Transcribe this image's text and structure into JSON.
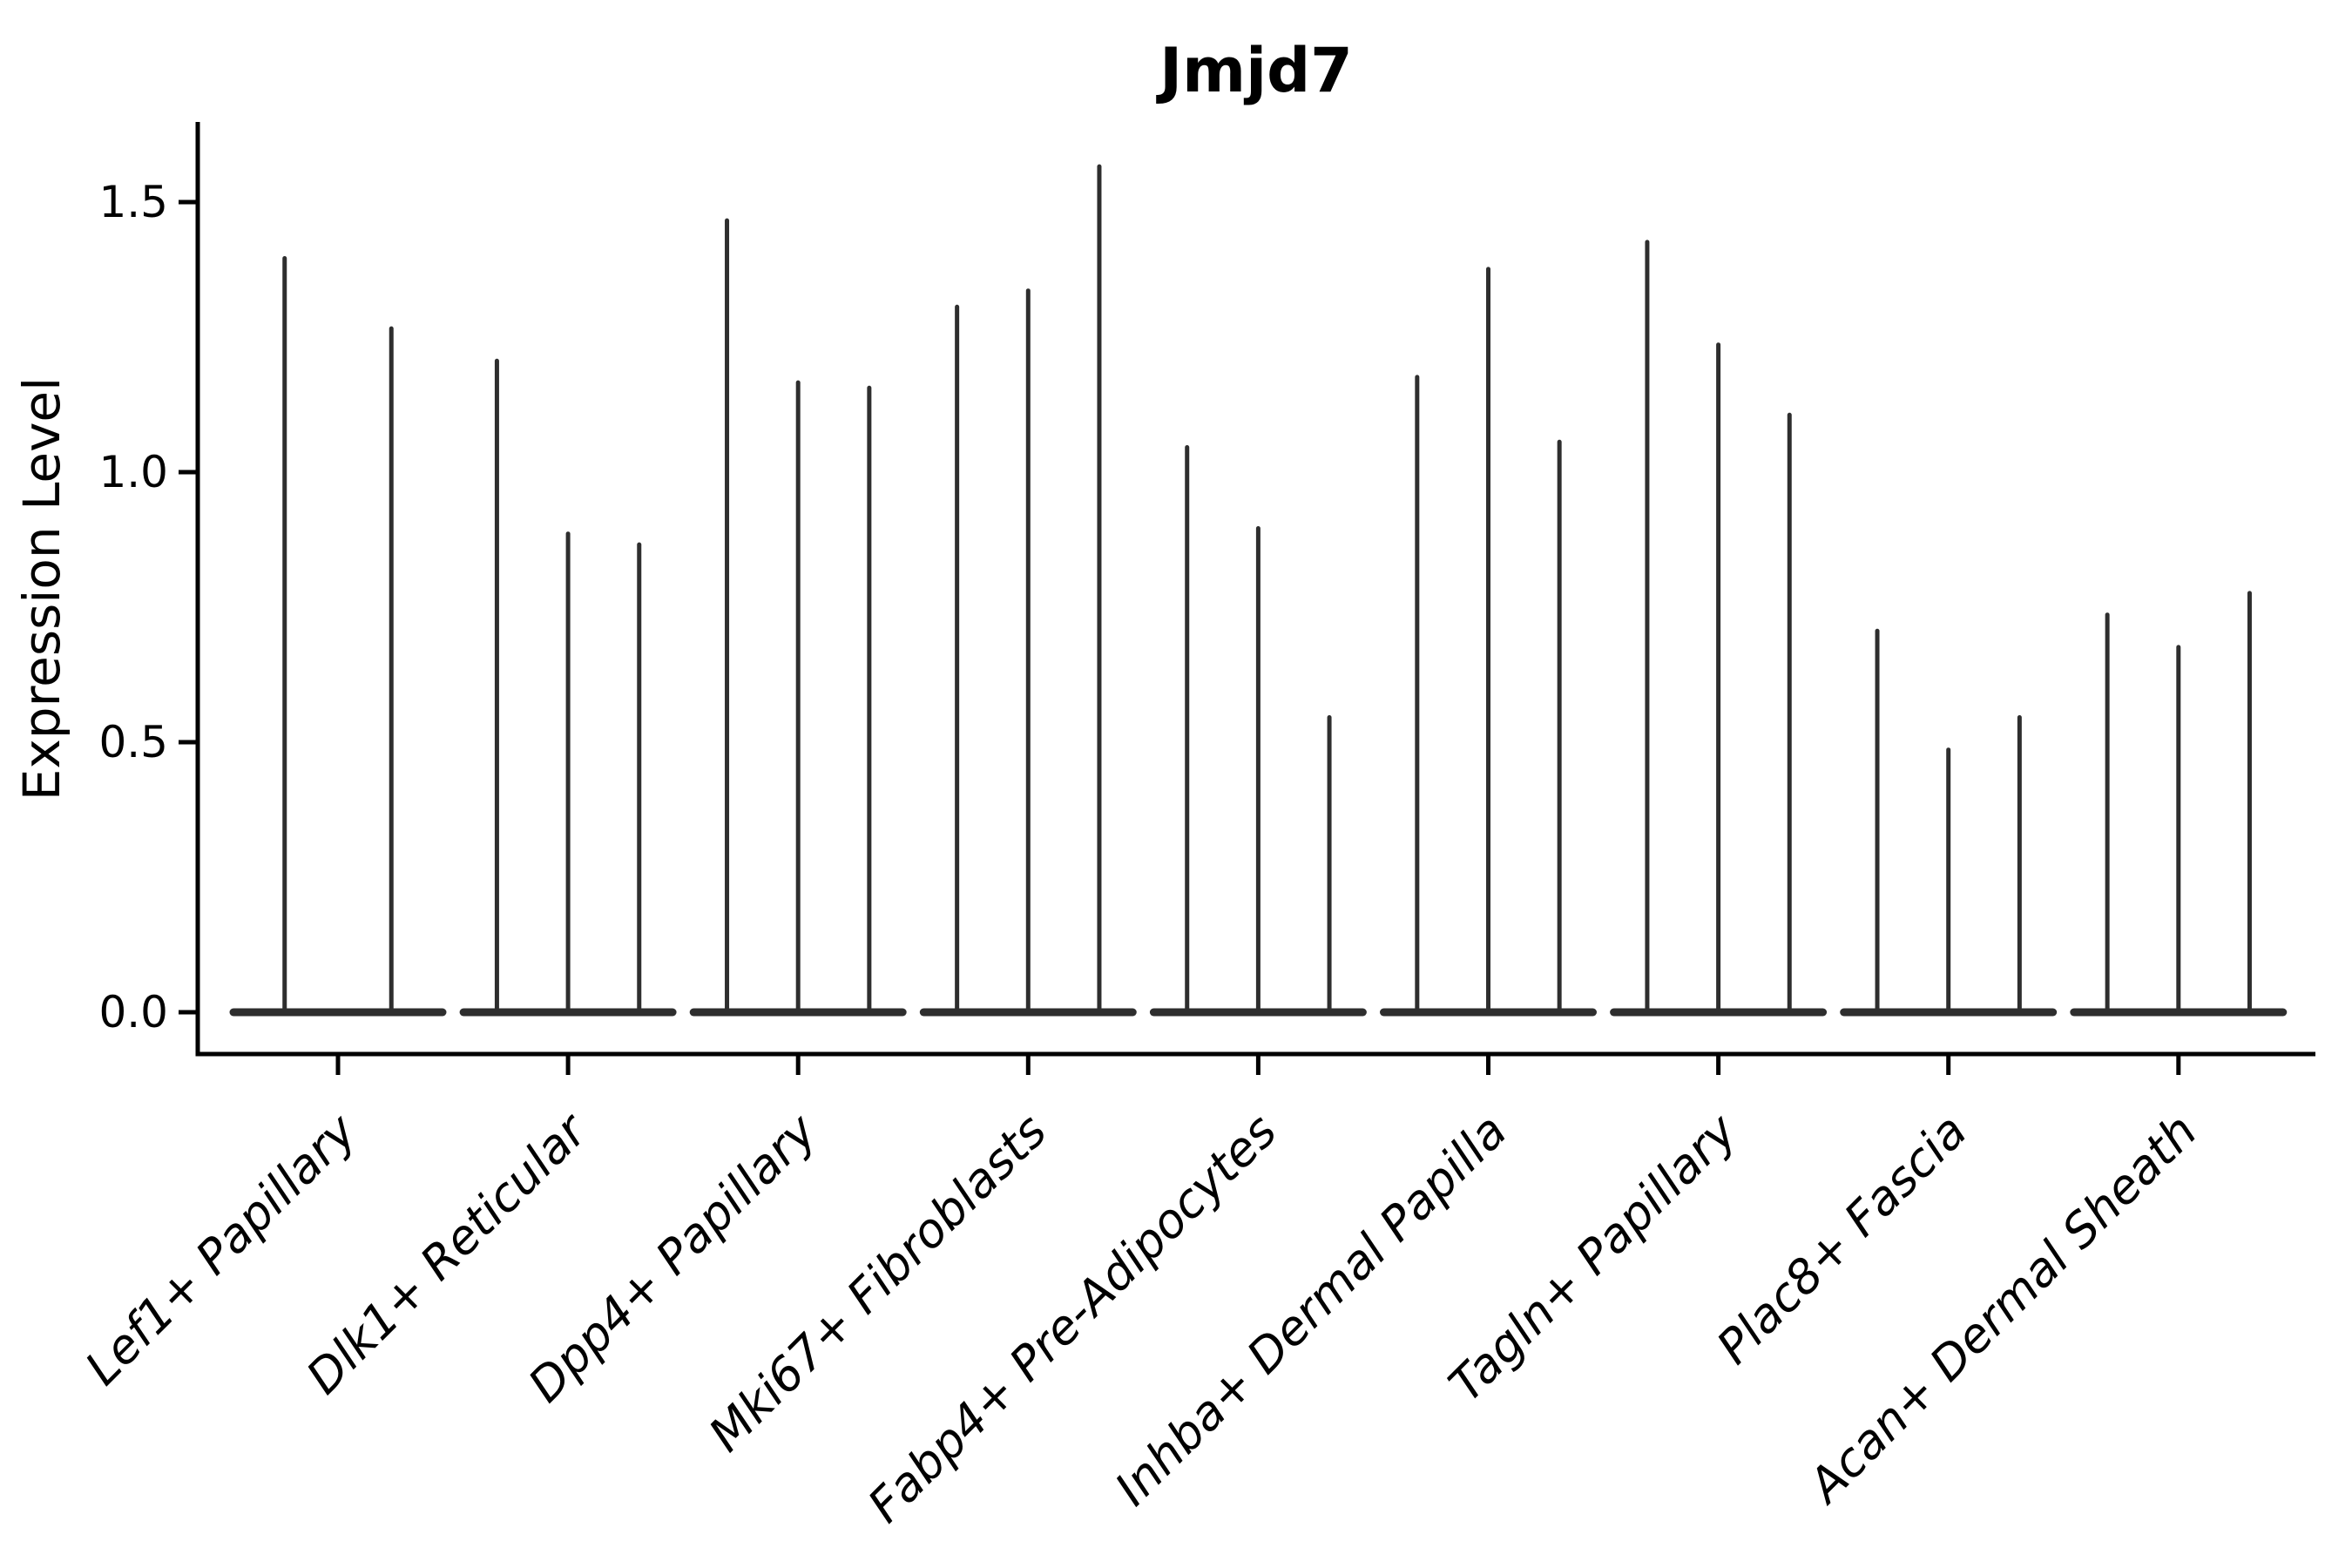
{
  "figure": {
    "title": "Jmjd7",
    "y_axis_label": "Expression Level"
  },
  "chart_data": {
    "type": "violin",
    "title": "Jmjd7",
    "xlabel": "",
    "ylabel": "Expression Level",
    "ylim": [
      -0.08,
      1.65
    ],
    "grid": false,
    "legend": null,
    "yticks": [
      {
        "value": 0.0,
        "label": "0.0"
      },
      {
        "value": 0.5,
        "label": "0.5"
      },
      {
        "value": 1.0,
        "label": "1.0"
      },
      {
        "value": 1.5,
        "label": "1.5"
      }
    ],
    "violin_style": {
      "baseline_value": 0,
      "note": "each violin is a flat dense body at expression 0 with a thin vertical spike rising to its maximum expression value"
    },
    "categories": [
      {
        "label": "Lef1+ Papillary",
        "violin_maxima": [
          1.4,
          1.27
        ]
      },
      {
        "label": "Dlk1+ Reticular",
        "violin_maxima": [
          1.21,
          0.89,
          0.87
        ]
      },
      {
        "label": "Dpp4+ Papillary",
        "violin_maxima": [
          1.47,
          1.17,
          1.16
        ]
      },
      {
        "label": "Mki67+ Fibroblasts",
        "violin_maxima": [
          1.31,
          1.34,
          1.57
        ]
      },
      {
        "label": "Fabp4+ Pre-Adipocytes",
        "violin_maxima": [
          1.05,
          0.9,
          0.55
        ]
      },
      {
        "label": "Inhba+ Dermal Papilla",
        "violin_maxima": [
          1.18,
          1.38,
          1.06
        ]
      },
      {
        "label": "Tagln+ Papillary",
        "violin_maxima": [
          1.43,
          1.24,
          1.11
        ]
      },
      {
        "label": "Plac8+ Fascia",
        "violin_maxima": [
          0.71,
          0.49,
          0.55
        ]
      },
      {
        "label": "Acan+ Dermal Sheath",
        "violin_maxima": [
          0.74,
          0.68,
          0.78
        ]
      }
    ],
    "colors": {
      "violin": "#2e2e2e",
      "axis": "#000000",
      "text": "#000000",
      "background": "#ffffff"
    }
  }
}
